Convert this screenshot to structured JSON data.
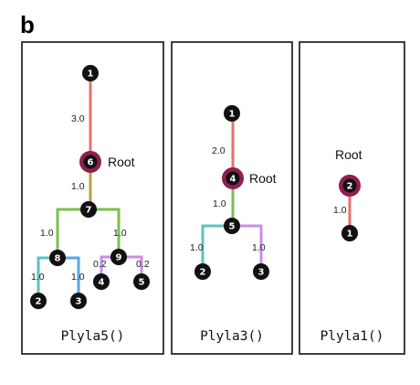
{
  "panel_label": "b",
  "colors": {
    "red": "#e8716b",
    "olive": "#b9a23f",
    "green": "#7cbf4a",
    "teal": "#5cc1c1",
    "blue": "#55a8e6",
    "purple": "#c98ee6",
    "node_fill": "#111111",
    "root_ring": "#8e1f4e"
  },
  "trees": [
    {
      "caption": "Plyla5()",
      "root_label": "Root",
      "nodes": [
        {
          "id": "1",
          "root": false
        },
        {
          "id": "6",
          "root": true
        },
        {
          "id": "7",
          "root": false
        },
        {
          "id": "8",
          "root": false
        },
        {
          "id": "9",
          "root": false
        },
        {
          "id": "2",
          "root": false
        },
        {
          "id": "3",
          "root": false
        },
        {
          "id": "4",
          "root": false
        },
        {
          "id": "5",
          "root": false
        }
      ],
      "edges": [
        {
          "from": "6",
          "to": "1",
          "length": "3.0",
          "color": "red"
        },
        {
          "from": "6",
          "to": "7",
          "length": "1.0",
          "color": "olive"
        },
        {
          "from": "7",
          "to": "8",
          "length": "1.0",
          "color": "green"
        },
        {
          "from": "7",
          "to": "9",
          "length": "1.0",
          "color": "green"
        },
        {
          "from": "8",
          "to": "2",
          "length": "1.0",
          "color": "teal"
        },
        {
          "from": "8",
          "to": "3",
          "length": "1.0",
          "color": "blue"
        },
        {
          "from": "9",
          "to": "4",
          "length": "0.2",
          "color": "purple"
        },
        {
          "from": "9",
          "to": "5",
          "length": "0.2",
          "color": "purple"
        }
      ]
    },
    {
      "caption": "Plyla3()",
      "root_label": "Root",
      "nodes": [
        {
          "id": "1",
          "root": false
        },
        {
          "id": "4",
          "root": true
        },
        {
          "id": "5",
          "root": false
        },
        {
          "id": "2",
          "root": false
        },
        {
          "id": "3",
          "root": false
        }
      ],
      "edges": [
        {
          "from": "4",
          "to": "1",
          "length": "2.0",
          "color": "red"
        },
        {
          "from": "4",
          "to": "5",
          "length": "1.0",
          "color": "green"
        },
        {
          "from": "5",
          "to": "2",
          "length": "1.0",
          "color": "teal"
        },
        {
          "from": "5",
          "to": "3",
          "length": "1.0",
          "color": "purple"
        }
      ]
    },
    {
      "caption": "Plyla1()",
      "root_label": "Root",
      "nodes": [
        {
          "id": "2",
          "root": true
        },
        {
          "id": "1",
          "root": false
        }
      ],
      "edges": [
        {
          "from": "2",
          "to": "1",
          "length": "1.0",
          "color": "red"
        }
      ]
    }
  ]
}
